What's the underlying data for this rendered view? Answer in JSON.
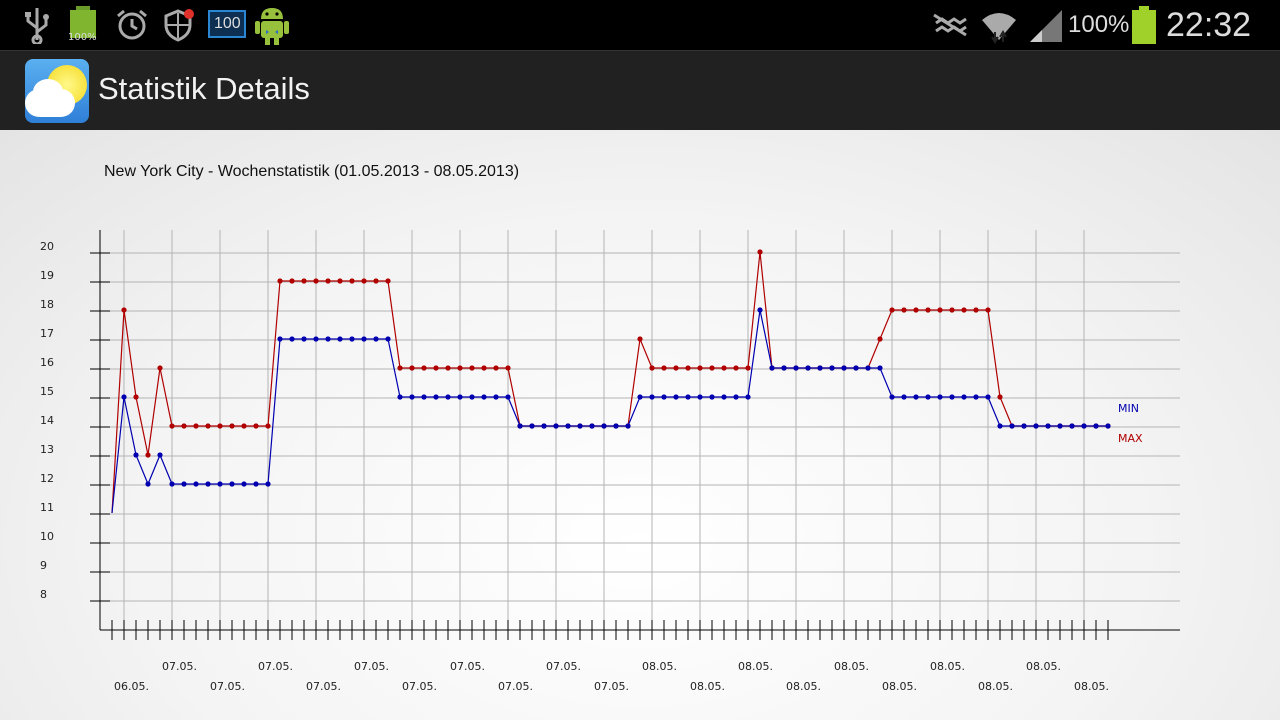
{
  "status_bar": {
    "icons_left": [
      "usb-icon",
      "battery-widget-icon",
      "alarm-icon",
      "shield-icon",
      "hundred-widget-icon",
      "android-icon"
    ],
    "battery_widget_label": "100%",
    "widget_label": "100",
    "icons_right": [
      "mute-icon",
      "wifi-icon",
      "signal-icon",
      "battery-icon"
    ],
    "battery_percent": "100%",
    "time": "22:32"
  },
  "action_bar": {
    "icon": "weather-sun-cloud-icon",
    "title": "Statistik Details"
  },
  "colors": {
    "max": "#b00000",
    "min": "#0000b0",
    "grid": "#b4b4b4",
    "axis": "#000000"
  },
  "chart_data": {
    "type": "line",
    "title": "New York City - Wochenstatistik (01.05.2013 - 08.05.2013)",
    "ylim": [
      7,
      20
    ],
    "y_ticks": [
      8,
      9,
      10,
      11,
      12,
      13,
      14,
      15,
      16,
      17,
      18,
      19,
      20
    ],
    "legend": [
      "MIN",
      "MAX"
    ],
    "legend_placement": "right",
    "grid": true,
    "x_labels_top": [
      "07.05.",
      "07.05.",
      "07.05.",
      "07.05.",
      "07.05.",
      "08.05.",
      "08.05.",
      "08.05.",
      "08.05.",
      "08.05."
    ],
    "x_labels_bottom": [
      "06.05.",
      "07.05.",
      "07.05.",
      "07.05.",
      "07.05.",
      "07.05.",
      "08.05.",
      "08.05.",
      "08.05.",
      "08.05.",
      "08.05."
    ],
    "series": [
      {
        "name": "MAX",
        "values": [
          11,
          18,
          15,
          13,
          16,
          14,
          14,
          14,
          14,
          14,
          14,
          14,
          14,
          14,
          19,
          19,
          19,
          19,
          19,
          19,
          19,
          19,
          19,
          19,
          16,
          16,
          16,
          16,
          16,
          16,
          16,
          16,
          16,
          16,
          14,
          14,
          14,
          14,
          14,
          14,
          14,
          14,
          14,
          14,
          17,
          16,
          16,
          16,
          16,
          16,
          16,
          16,
          16,
          16,
          20,
          16,
          16,
          16,
          16,
          16,
          16,
          16,
          16,
          16,
          17,
          18,
          18,
          18,
          18,
          18,
          18,
          18,
          18,
          18,
          15,
          14,
          14,
          14,
          14,
          14,
          14,
          14,
          14,
          14
        ]
      },
      {
        "name": "MIN",
        "values": [
          11,
          15,
          13,
          12,
          13,
          12,
          12,
          12,
          12,
          12,
          12,
          12,
          12,
          12,
          17,
          17,
          17,
          17,
          17,
          17,
          17,
          17,
          17,
          17,
          15,
          15,
          15,
          15,
          15,
          15,
          15,
          15,
          15,
          15,
          14,
          14,
          14,
          14,
          14,
          14,
          14,
          14,
          14,
          14,
          15,
          15,
          15,
          15,
          15,
          15,
          15,
          15,
          15,
          15,
          18,
          16,
          16,
          16,
          16,
          16,
          16,
          16,
          16,
          16,
          16,
          15,
          15,
          15,
          15,
          15,
          15,
          15,
          15,
          15,
          14,
          14,
          14,
          14,
          14,
          14,
          14,
          14,
          14,
          14
        ]
      }
    ]
  }
}
